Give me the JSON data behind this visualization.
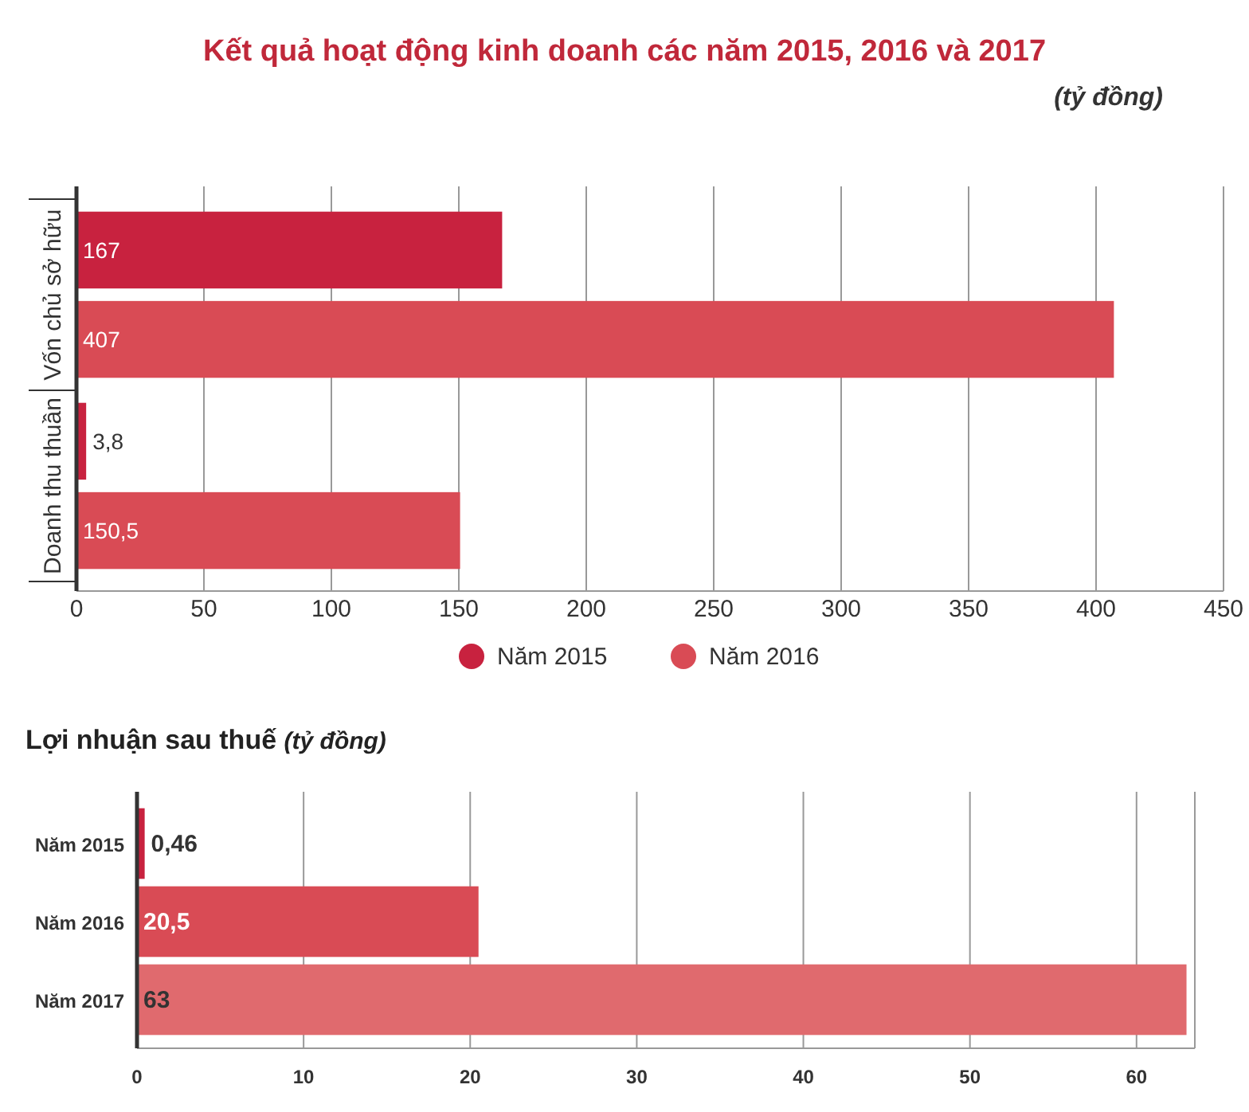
{
  "chart_data": [
    {
      "type": "bar",
      "orientation": "horizontal",
      "title": "Kết quả hoạt động kinh doanh các năm 2015, 2016 và 2017",
      "subtitle": "(tỷ đồng)",
      "categories": [
        "Vốn chủ sở hữu",
        "Doanh thu thuần"
      ],
      "series": [
        {
          "name": "Năm 2015",
          "color": "#c8223f",
          "values": [
            167,
            3.8
          ],
          "value_labels": [
            "167",
            "3,8"
          ]
        },
        {
          "name": "Năm 2016",
          "color": "#d94b55",
          "values": [
            407,
            150.5
          ],
          "value_labels": [
            "407",
            "150,5"
          ]
        }
      ],
      "xlim": [
        0,
        450
      ],
      "xticks": [
        0,
        50,
        100,
        150,
        200,
        250,
        300,
        350,
        400,
        450
      ],
      "grid": "x",
      "legend": "bottom"
    },
    {
      "type": "bar",
      "orientation": "horizontal",
      "title": "Lợi nhuận sau thuế",
      "subtitle": "(tỷ đồng)",
      "categories": [
        "Năm 2015",
        "Năm 2016",
        "Năm 2017"
      ],
      "values": [
        0.46,
        20.5,
        63
      ],
      "colors": [
        "#c8223f",
        "#d94b55",
        "#e06a6e"
      ],
      "value_labels": [
        "0,46",
        "20,5",
        "63"
      ],
      "xlim": [
        0,
        63.5
      ],
      "xticks": [
        0,
        10,
        20,
        30,
        40,
        50,
        60
      ],
      "grid": "x"
    }
  ]
}
